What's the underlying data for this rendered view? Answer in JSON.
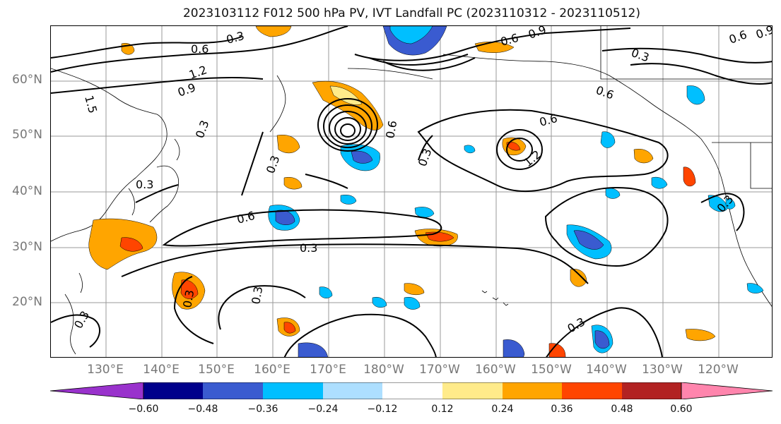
{
  "title": "2023103112 F012 500 hPa PV, IVT Landfall PC (2023110312 - 2023110512)",
  "lat_labels": [
    "60°N",
    "50°N",
    "40°N",
    "30°N",
    "20°N"
  ],
  "lon_labels": [
    "130°E",
    "140°E",
    "150°E",
    "160°E",
    "170°E",
    "180°W",
    "170°W",
    "160°W",
    "150°W",
    "140°W",
    "130°W",
    "120°W"
  ],
  "contour_labels": [
    "0.3",
    "0.6",
    "0.9",
    "1.2",
    "1.5",
    "0.6",
    "0.3",
    "0.3",
    "0.3",
    "0.3",
    "0.6",
    "0.3",
    "0.3",
    "0.3",
    "0.6",
    "1.2",
    "0.6",
    "0.3",
    "0.9",
    "0.6",
    "0.3",
    "0.6",
    "0.9",
    "0.3",
    "0.3"
  ],
  "colorbar": {
    "colors": [
      "#9932CC",
      "#00008B",
      "#3A5BD0",
      "#00BFFF",
      "#ADDFFF",
      "#FFFFFF",
      "#FFFFFF",
      "#FFEB8A",
      "#FFA500",
      "#FF4500",
      "#B22222",
      "#FF85AD"
    ],
    "ticks": [
      "−0.60",
      "−0.48",
      "−0.36",
      "−0.24",
      "−0.12",
      "0.12",
      "0.24",
      "0.36",
      "0.48",
      "0.60"
    ]
  }
}
